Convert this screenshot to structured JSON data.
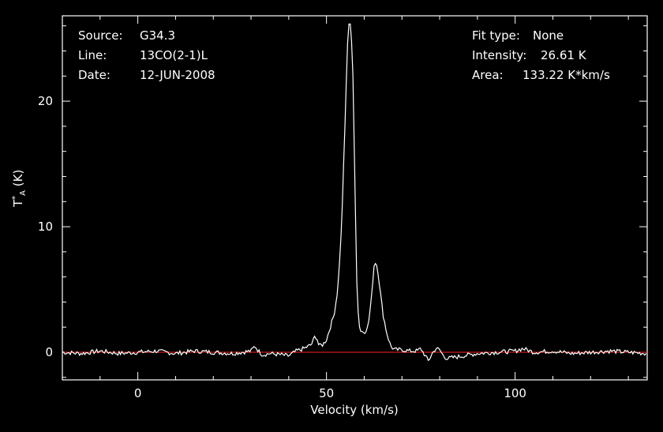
{
  "header": {
    "source_label": "Source:",
    "source_value": "G34.3",
    "line_label": "Line:",
    "line_value": "13CO(2-1)L",
    "date_label": "Date:",
    "date_value": "12-JUN-2008",
    "fit_label": "Fit type:",
    "fit_value": "None",
    "intensity_label": "Intensity:",
    "intensity_value": "26.61 K",
    "area_label": "Area:",
    "area_value": "133.22 K*km/s"
  },
  "chart_data": {
    "type": "line",
    "title": "",
    "xlabel": "Velocity (km/s)",
    "ylabel": "T*A (K)",
    "ylabel_parts": {
      "main": "T",
      "sup": "*",
      "sub": "A",
      "unit": " (K)"
    },
    "xlim": [
      -20,
      135
    ],
    "ylim": [
      -2.2,
      26.8
    ],
    "xticks": [
      0,
      50,
      100
    ],
    "yticks": [
      0,
      10,
      20
    ],
    "grid": false,
    "baseline": {
      "y": 0,
      "color": "#ff2020"
    },
    "colors": {
      "spectrum": "#ffffff",
      "axes": "#ffffff",
      "baseline": "#ff2020",
      "background": "#000000"
    },
    "series": [
      {
        "x": [
          -20,
          -15,
          -10,
          -5,
          0,
          5,
          10,
          15,
          20,
          25,
          30,
          31,
          32,
          33,
          35,
          38,
          40,
          42,
          44,
          46,
          47,
          47.5,
          48,
          49,
          50,
          51,
          52,
          53,
          54,
          55,
          55.5,
          56,
          56.5,
          57,
          57.5,
          58,
          58.5,
          59,
          60,
          61,
          62,
          62.5,
          63,
          63.5,
          64,
          65,
          66,
          67,
          68,
          70,
          72,
          74,
          75,
          76,
          77,
          78,
          79,
          80,
          81,
          82,
          84,
          86,
          88,
          90,
          95,
          100,
          102,
          105,
          110,
          115,
          120,
          125,
          130,
          135
        ],
        "y": [
          0,
          -0.1,
          0.1,
          -0.1,
          0,
          0.1,
          -0.1,
          0.1,
          0,
          -0.1,
          0.1,
          0.5,
          0.1,
          -0.2,
          -0.1,
          -0.2,
          -0.3,
          0.1,
          0.3,
          0.6,
          1.3,
          1.1,
          0.5,
          0.6,
          1.0,
          2.0,
          3.0,
          5.0,
          10.0,
          19.0,
          24.0,
          26.5,
          26.0,
          22.0,
          14.0,
          6.0,
          2.5,
          1.7,
          1.6,
          2.0,
          4.5,
          6.8,
          7.2,
          6.8,
          5.5,
          3.0,
          1.5,
          0.5,
          0.2,
          0.2,
          0.1,
          0.1,
          0.3,
          -0.2,
          -0.7,
          -0.1,
          0.3,
          0.2,
          -0.3,
          -0.5,
          -0.4,
          -0.3,
          -0.2,
          -0.1,
          0,
          0.1,
          0.3,
          0,
          0.1,
          -0.1,
          0,
          0.1,
          0,
          -0.1
        ]
      }
    ]
  }
}
